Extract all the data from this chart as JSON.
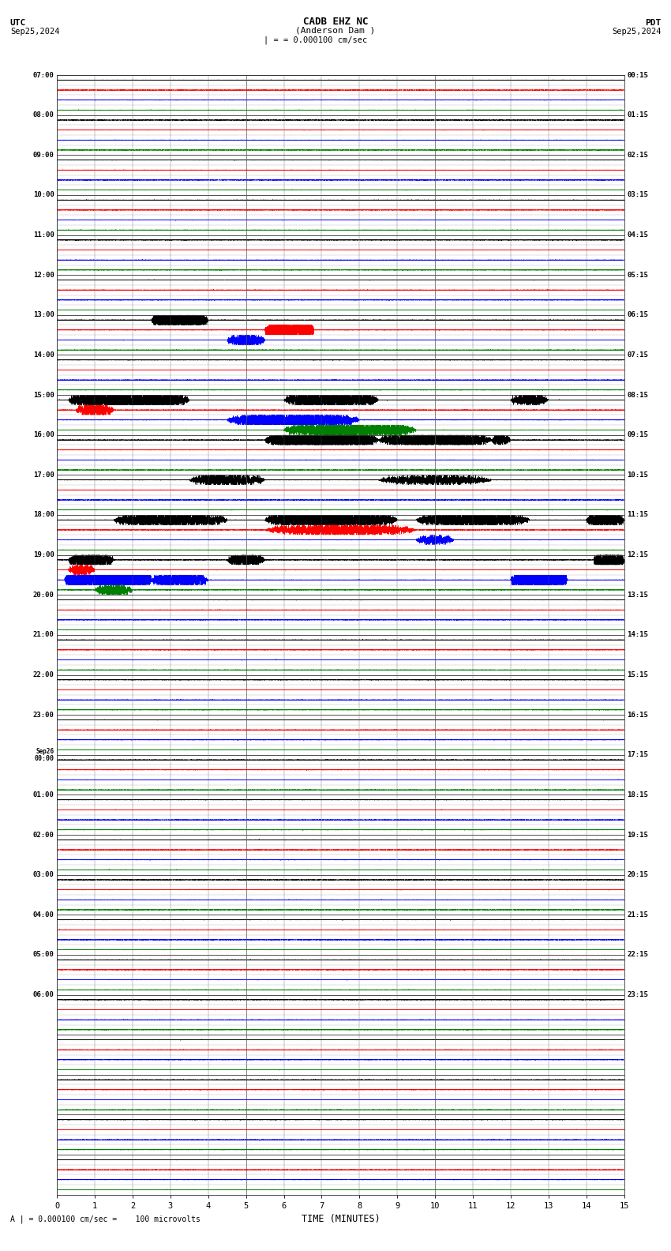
{
  "title_line1": "CADB EHZ NC",
  "title_line2": "(Anderson Dam )",
  "scale_text": "= 0.000100 cm/sec",
  "utc_label": "UTC",
  "utc_date": "Sep25,2024",
  "pdt_label": "PDT",
  "pdt_date": "Sep25,2024",
  "footer_text": "= 0.000100 cm/sec =    100 microvolts",
  "xlabel": "TIME (MINUTES)",
  "time_axis_min": 0,
  "time_axis_max": 15,
  "bg_color": "#ffffff",
  "row_colors_cycle": [
    "black",
    "red",
    "blue",
    "green"
  ],
  "num_trace_rows": 112,
  "hour_labels_left": [
    "07:00",
    "08:00",
    "09:00",
    "10:00",
    "11:00",
    "12:00",
    "13:00",
    "14:00",
    "15:00",
    "16:00",
    "17:00",
    "18:00",
    "19:00",
    "20:00",
    "21:00",
    "22:00",
    "23:00",
    "Sep26\n00:00",
    "01:00",
    "02:00",
    "03:00",
    "04:00",
    "05:00",
    "06:00"
  ],
  "hour_labels_right": [
    "00:15",
    "01:15",
    "02:15",
    "03:15",
    "04:15",
    "05:15",
    "06:15",
    "07:15",
    "08:15",
    "09:15",
    "10:15",
    "11:15",
    "12:15",
    "13:15",
    "14:15",
    "15:15",
    "16:15",
    "17:15",
    "18:15",
    "19:15",
    "20:15",
    "21:15",
    "22:15",
    "23:15"
  ],
  "events": [
    {
      "row": 24,
      "t0": 2.5,
      "t1": 4.0,
      "amp": 12
    },
    {
      "row": 25,
      "t0": 5.5,
      "t1": 6.8,
      "amp": 15
    },
    {
      "row": 26,
      "t0": 4.5,
      "t1": 5.5,
      "amp": 6
    },
    {
      "row": 32,
      "t0": 0.3,
      "t1": 3.5,
      "amp": 10
    },
    {
      "row": 32,
      "t0": 6.0,
      "t1": 8.5,
      "amp": 8
    },
    {
      "row": 32,
      "t0": 12.0,
      "t1": 13.0,
      "amp": 5
    },
    {
      "row": 33,
      "t0": 0.5,
      "t1": 1.5,
      "amp": 6
    },
    {
      "row": 34,
      "t0": 4.5,
      "t1": 8.0,
      "amp": 7
    },
    {
      "row": 35,
      "t0": 6.0,
      "t1": 9.5,
      "amp": 8
    },
    {
      "row": 36,
      "t0": 5.5,
      "t1": 8.5,
      "amp": 10
    },
    {
      "row": 36,
      "t0": 8.5,
      "t1": 11.5,
      "amp": 8
    },
    {
      "row": 36,
      "t0": 11.5,
      "t1": 12.0,
      "amp": 5
    },
    {
      "row": 40,
      "t0": 3.5,
      "t1": 5.5,
      "amp": 5
    },
    {
      "row": 40,
      "t0": 8.5,
      "t1": 11.5,
      "amp": 4
    },
    {
      "row": 44,
      "t0": 1.5,
      "t1": 4.5,
      "amp": 7
    },
    {
      "row": 44,
      "t0": 5.5,
      "t1": 9.0,
      "amp": 9
    },
    {
      "row": 44,
      "t0": 9.5,
      "t1": 12.5,
      "amp": 7
    },
    {
      "row": 44,
      "t0": 14.0,
      "t1": 15.0,
      "amp": 8
    },
    {
      "row": 45,
      "t0": 5.5,
      "t1": 9.5,
      "amp": 5
    },
    {
      "row": 46,
      "t0": 9.5,
      "t1": 10.5,
      "amp": 4
    },
    {
      "row": 48,
      "t0": 0.3,
      "t1": 1.5,
      "amp": 8
    },
    {
      "row": 48,
      "t0": 4.5,
      "t1": 5.5,
      "amp": 6
    },
    {
      "row": 48,
      "t0": 14.2,
      "t1": 15.0,
      "amp": 12
    },
    {
      "row": 49,
      "t0": 0.3,
      "t1": 1.0,
      "amp": 5
    },
    {
      "row": 50,
      "t0": 0.2,
      "t1": 2.5,
      "amp": 20
    },
    {
      "row": 50,
      "t0": 2.5,
      "t1": 4.0,
      "amp": 8
    },
    {
      "row": 50,
      "t0": 12.0,
      "t1": 13.5,
      "amp": 15
    },
    {
      "row": 51,
      "t0": 1.0,
      "t1": 2.0,
      "amp": 5
    }
  ]
}
